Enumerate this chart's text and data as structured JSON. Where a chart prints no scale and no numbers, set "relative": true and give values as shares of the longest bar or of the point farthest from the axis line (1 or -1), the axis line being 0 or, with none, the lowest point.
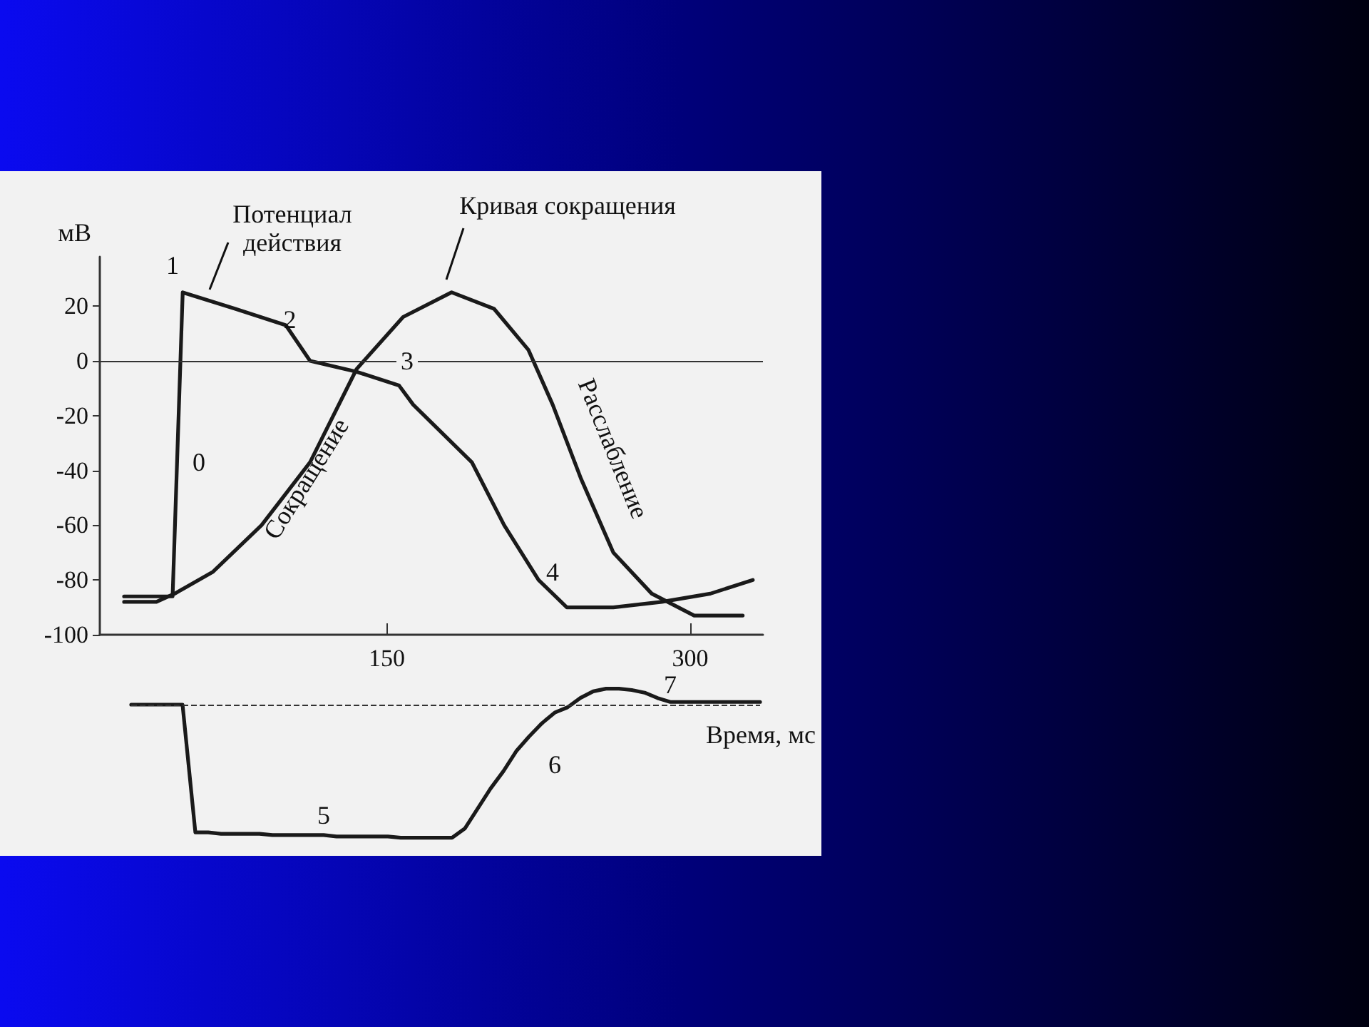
{
  "chart_data": [
    {
      "type": "line",
      "ylabel": "мВ",
      "xlim": [
        8,
        336
      ],
      "xticks": [
        150,
        300
      ],
      "ylim": [
        -100,
        38
      ],
      "yticks": [
        -100,
        -80,
        -60,
        -40,
        -20,
        0,
        20
      ],
      "marker": "none",
      "line_style": "solid",
      "ref_lines": [
        {
          "axis": "y",
          "value": 0,
          "color": "#333333",
          "line_style": "solid"
        }
      ],
      "series": [
        {
          "name": "Потенциал действия",
          "color": "#1a1a1a",
          "x": [
            20,
            44,
            49,
            75,
            100,
            112,
            135,
            156,
            163,
            192,
            208,
            225,
            239,
            262,
            286,
            310,
            331
          ],
          "values": [
            -86,
            -86,
            25,
            19,
            13,
            0,
            -4,
            -9,
            -16,
            -37,
            -60,
            -80,
            -90,
            -90,
            -88,
            -85,
            -80
          ]
        },
        {
          "name": "Кривая сокращения",
          "color": "#1a1a1a",
          "x": [
            20,
            36,
            45,
            64,
            88,
            112,
            135,
            158,
            182,
            203,
            220,
            232,
            246,
            262,
            281,
            302,
            326
          ],
          "values": [
            -88,
            -88,
            -85,
            -77,
            -60,
            -37,
            -3,
            16,
            25,
            19,
            4,
            -16,
            -43,
            -70,
            -85,
            -93,
            -93
          ]
        }
      ],
      "annotations": [
        "1",
        "2",
        "3",
        "0",
        "4",
        "Сокращение",
        "Расслабление"
      ]
    },
    {
      "type": "line",
      "relative": true,
      "xlabel": "Время, мс",
      "marker": "none",
      "line_style": "solid",
      "ref_lines": [
        {
          "axis": "y",
          "value": 0,
          "color": "#333333",
          "line_style": "dashed"
        }
      ],
      "categories": [
        null,
        null,
        null,
        null,
        null,
        null,
        null,
        null,
        null,
        null,
        null,
        null,
        null,
        null,
        null,
        null,
        null,
        null,
        null,
        null,
        null,
        null,
        null,
        null,
        null,
        null,
        null,
        null,
        null,
        null,
        null,
        null,
        null,
        null,
        null,
        null,
        null,
        null,
        null,
        null,
        null,
        null,
        null,
        null,
        null,
        null,
        null,
        null,
        null,
        null
      ],
      "series": [
        {
          "color": "#1a1a1a",
          "values": [
            0,
            0,
            0,
            0,
            0,
            -0.96,
            -0.96,
            -0.97,
            -0.97,
            -0.97,
            -0.97,
            -0.98,
            -0.98,
            -0.98,
            -0.98,
            -0.98,
            -0.99,
            -0.99,
            -0.99,
            -0.99,
            -0.99,
            -1,
            -1,
            -1,
            -1,
            -1,
            -0.93,
            -0.78,
            -0.63,
            -0.5,
            -0.35,
            -0.24,
            -0.14,
            -0.06,
            -0.02,
            0.05,
            0.1,
            0.12,
            0.12,
            0.11,
            0.09,
            0.05,
            0.02,
            0.02,
            0.02,
            0.02,
            0.02,
            0.02,
            0.02,
            0.02
          ]
        }
      ],
      "annotations": [
        "5",
        "6",
        "7"
      ]
    }
  ]
}
